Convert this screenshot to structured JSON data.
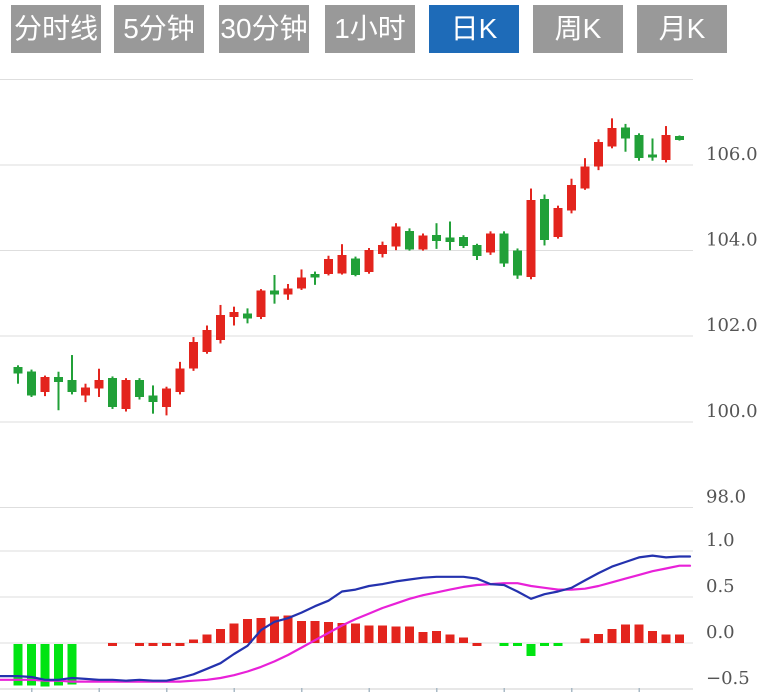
{
  "tabs": {
    "active_index": 4,
    "items": [
      {
        "id": "tab-minute-line",
        "label": "分时线"
      },
      {
        "id": "tab-5min",
        "label": "5分钟"
      },
      {
        "id": "tab-30min",
        "label": "30分钟"
      },
      {
        "id": "tab-1hour",
        "label": "1小时"
      },
      {
        "id": "tab-daily-k",
        "label": "日K"
      },
      {
        "id": "tab-weekly-k",
        "label": "周K"
      },
      {
        "id": "tab-monthly-k",
        "label": "月K"
      }
    ]
  },
  "colors": {
    "up": "#e3241d",
    "down": "#21a038",
    "hist_positive": "#e3241d",
    "hist_negative": "#00e412",
    "dif_line": "#2432ae",
    "dea_line": "#e821d8",
    "grid": "#dedede",
    "axis_line": "#cfcfcf",
    "tick": "#a9bac6",
    "axis_label": "#555555",
    "tab_bg": "#999999",
    "tab_active_bg": "#1e6bb8",
    "tab_text": "#ffffff"
  },
  "chart_data": {
    "type": "candlestick+macd-histogram",
    "legend_position": "none",
    "grid": "horizontal-only",
    "price_axis": {
      "side": "right",
      "gridlines": [
        {
          "value": 108.0,
          "label": ""
        },
        {
          "value": 106.0,
          "label": "106.0"
        },
        {
          "value": 104.0,
          "label": "104.0"
        },
        {
          "value": 102.0,
          "label": "102.0"
        },
        {
          "value": 100.0,
          "label": "100.0"
        },
        {
          "value": 98.0,
          "label": "98.0"
        }
      ],
      "range": [
        97.0,
        108.0
      ]
    },
    "macd_axis": {
      "side": "right",
      "gridlines": [
        {
          "value": 1.0,
          "label": "1.0"
        },
        {
          "value": 0.5,
          "label": "0.5"
        },
        {
          "value": 0.0,
          "label": "0.0"
        },
        {
          "value": -0.5,
          "label": "−0.5"
        }
      ],
      "range": [
        -0.5,
        1.0
      ]
    },
    "candles_ohlc": [
      [
        101.28,
        101.32,
        100.89,
        101.13
      ],
      [
        101.17,
        101.22,
        100.58,
        100.62
      ],
      [
        100.7,
        101.08,
        100.6,
        101.05
      ],
      [
        101.05,
        101.17,
        100.27,
        100.93
      ],
      [
        100.98,
        101.56,
        100.64,
        100.7
      ],
      [
        100.62,
        100.89,
        100.46,
        100.8
      ],
      [
        100.78,
        101.24,
        100.58,
        100.98
      ],
      [
        101.02,
        101.06,
        100.3,
        100.34
      ],
      [
        100.3,
        101.02,
        100.24,
        100.98
      ],
      [
        100.98,
        101.02,
        100.52,
        100.58
      ],
      [
        100.62,
        100.85,
        100.19,
        100.46
      ],
      [
        100.34,
        100.82,
        100.15,
        100.78
      ],
      [
        100.7,
        101.4,
        100.64,
        101.24
      ],
      [
        101.24,
        101.98,
        101.19,
        101.87
      ],
      [
        101.63,
        102.25,
        101.59,
        102.14
      ],
      [
        101.91,
        102.73,
        101.83,
        102.49
      ],
      [
        102.45,
        102.69,
        102.25,
        102.57
      ],
      [
        102.53,
        102.65,
        102.3,
        102.41
      ],
      [
        102.45,
        103.1,
        102.4,
        103.07
      ],
      [
        103.07,
        103.43,
        102.76,
        102.97
      ],
      [
        102.97,
        103.22,
        102.85,
        103.12
      ],
      [
        103.12,
        103.56,
        103.08,
        103.37
      ],
      [
        103.45,
        103.51,
        103.2,
        103.37
      ],
      [
        103.45,
        103.88,
        103.42,
        103.8
      ],
      [
        103.47,
        104.15,
        103.44,
        103.9
      ],
      [
        103.82,
        103.86,
        103.4,
        103.43
      ],
      [
        103.5,
        104.06,
        103.46,
        104.01
      ],
      [
        103.92,
        104.21,
        103.84,
        104.13
      ],
      [
        104.09,
        104.64,
        104.01,
        104.56
      ],
      [
        104.46,
        104.52,
        104.0,
        104.03
      ],
      [
        104.03,
        104.4,
        104.0,
        104.35
      ],
      [
        104.36,
        104.64,
        104.04,
        104.23
      ],
      [
        104.31,
        104.68,
        104.01,
        104.2
      ],
      [
        104.32,
        104.36,
        104.06,
        104.11
      ],
      [
        104.13,
        104.16,
        103.78,
        103.87
      ],
      [
        103.95,
        104.45,
        103.9,
        104.4
      ],
      [
        104.4,
        104.45,
        103.62,
        103.7
      ],
      [
        104.0,
        104.05,
        103.34,
        103.42
      ],
      [
        103.38,
        105.45,
        103.33,
        105.18
      ],
      [
        105.2,
        105.31,
        104.12,
        104.25
      ],
      [
        104.32,
        105.05,
        104.28,
        104.99
      ],
      [
        104.94,
        105.68,
        104.87,
        105.53
      ],
      [
        105.45,
        106.16,
        105.42,
        105.96
      ],
      [
        105.96,
        106.6,
        105.88,
        106.54
      ],
      [
        106.43,
        107.09,
        106.39,
        106.86
      ],
      [
        106.88,
        106.96,
        106.31,
        106.62
      ],
      [
        106.7,
        106.74,
        106.1,
        106.16
      ],
      [
        106.24,
        106.62,
        106.1,
        106.18
      ],
      [
        106.12,
        106.91,
        106.06,
        106.7
      ],
      [
        106.68,
        106.69,
        106.57,
        106.58
      ]
    ],
    "macd": {
      "histogram": [
        -0.45,
        -0.45,
        -0.46,
        -0.45,
        -0.44,
        0,
        0,
        0.01,
        0,
        0.01,
        0.01,
        0.01,
        0.02,
        0.04,
        0.09,
        0.15,
        0.21,
        0.26,
        0.27,
        0.29,
        0.3,
        0.24,
        0.24,
        0.23,
        0.22,
        0.21,
        0.19,
        0.19,
        0.18,
        0.18,
        0.12,
        0.13,
        0.09,
        0.06,
        0.03,
        0,
        -0.03,
        -0.03,
        -0.13,
        -0.03,
        -0.03,
        0,
        0.05,
        0.1,
        0.15,
        0.2,
        0.2,
        0.13,
        0.09,
        0.09
      ],
      "dif": [
        -0.36,
        -0.37,
        -0.4,
        -0.4,
        -0.38,
        -0.39,
        -0.4,
        -0.4,
        -0.41,
        -0.4,
        -0.41,
        -0.41,
        -0.38,
        -0.34,
        -0.28,
        -0.22,
        -0.12,
        -0.03,
        0.14,
        0.23,
        0.27,
        0.33,
        0.4,
        0.46,
        0.56,
        0.58,
        0.62,
        0.64,
        0.67,
        0.69,
        0.71,
        0.72,
        0.72,
        0.72,
        0.7,
        0.64,
        0.63,
        0.56,
        0.48,
        0.53,
        0.56,
        0.6,
        0.68,
        0.76,
        0.83,
        0.88,
        0.93,
        0.95,
        0.93,
        0.94
      ],
      "dea": [
        -0.4,
        -0.4,
        -0.41,
        -0.41,
        -0.42,
        -0.42,
        -0.42,
        -0.42,
        -0.42,
        -0.42,
        -0.42,
        -0.42,
        -0.42,
        -0.41,
        -0.4,
        -0.38,
        -0.35,
        -0.31,
        -0.26,
        -0.2,
        -0.13,
        -0.05,
        0.03,
        0.11,
        0.19,
        0.26,
        0.32,
        0.38,
        0.43,
        0.48,
        0.52,
        0.55,
        0.58,
        0.61,
        0.63,
        0.64,
        0.65,
        0.65,
        0.62,
        0.6,
        0.58,
        0.58,
        0.59,
        0.62,
        0.66,
        0.7,
        0.74,
        0.78,
        0.81,
        0.84
      ]
    }
  }
}
